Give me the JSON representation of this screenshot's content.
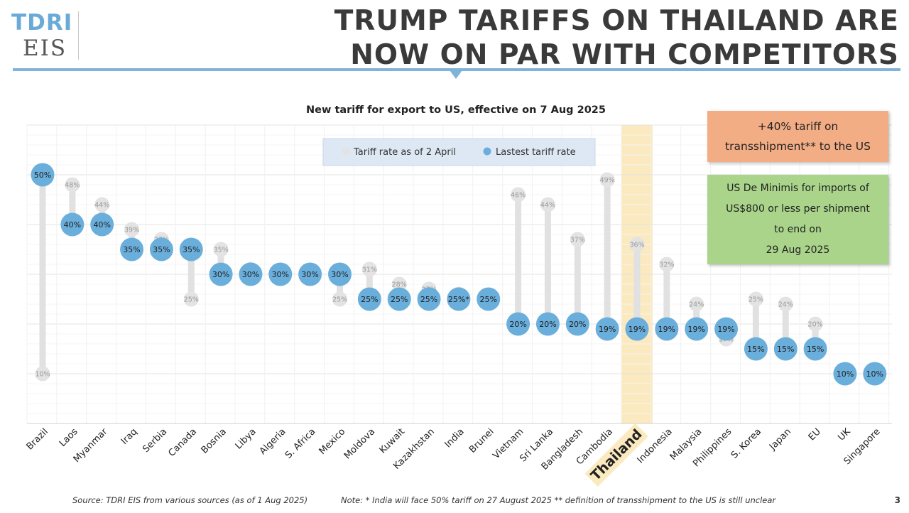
{
  "logo": {
    "line1": "TDRI",
    "line2": "EIS"
  },
  "headline": {
    "line1": "TRUMP TARIFFS ON THAILAND ARE",
    "line2": "NOW ON PAR WITH COMPETITORS"
  },
  "notes": {
    "transshipment_line1": "+40%  tariff on",
    "transshipment_line2": "transshipment** to the US",
    "deminimis_line1": "US De Minimis for imports of",
    "deminimis_line2": "US$800 or less per shipment",
    "deminimis_line3": "to end on",
    "deminimis_line4": "29 Aug 2025"
  },
  "footer": {
    "source": "Source: TDRI EIS from various sources (as of 1 Aug 2025)",
    "note": "Note: * India will face 50% tariff on 27 August 2025   ** definition of transshipment to the US is still unclear",
    "page": "3"
  },
  "colors": {
    "latest": "#6aaedb",
    "april": "#e3e3e3",
    "stem": "#e1e1e1",
    "highlight": "#fbe9bf",
    "trans_box": "#f3ad85",
    "minimis_box": "#a9d48a",
    "accent": "#7fb3d8"
  },
  "chart_data": {
    "type": "dumbbell",
    "title": "New tariff for export to US, effective on 7 Aug 2025",
    "legend": {
      "april": "Tariff rate as of 2 April",
      "latest": "Lastest tariff rate"
    },
    "highlight": "Thailand",
    "ylim": [
      0,
      60
    ],
    "categories": [
      "Brazil",
      "Laos",
      "Myanmar",
      "Iraq",
      "Serbia",
      "Canada",
      "Bosnia",
      "Libya",
      "Algeria",
      "S. Africa",
      "Mexico",
      "Moldova",
      "Kuwait",
      "Kazakhstan",
      "India",
      "Brunei",
      "Vietnam",
      "Sri Lanka",
      "Bangladesh",
      "Cambodia",
      "Thailand",
      "Indonesia",
      "Malaysia",
      "Philippines",
      "S. Korea",
      "Japan",
      "EU",
      "UK",
      "Singapore"
    ],
    "series": [
      {
        "name": "Tariff rate as of 2 April",
        "values": [
          10,
          48,
          44,
          39,
          37,
          25,
          35,
          31,
          30,
          30,
          25,
          31,
          28,
          27,
          26,
          24,
          46,
          44,
          37,
          49,
          36,
          32,
          24,
          17,
          25,
          24,
          20,
          10,
          10
        ]
      },
      {
        "name": "Lastest tariff rate",
        "values": [
          50,
          40,
          40,
          35,
          35,
          35,
          30,
          30,
          30,
          30,
          30,
          25,
          25,
          25,
          25,
          25,
          20,
          20,
          20,
          19,
          19,
          19,
          19,
          19,
          15,
          15,
          15,
          10,
          10
        ]
      }
    ],
    "april_labels": [
      "10%",
      "48%",
      "44%",
      "39%",
      "37%",
      "25%",
      "35%",
      "31%",
      "30%",
      "30%",
      "25%",
      "31%",
      "28%",
      "27%",
      "26%",
      "24%",
      "46%",
      "44%",
      "37%",
      "49%",
      "36%",
      "32%",
      "24%",
      "17%",
      "25%",
      "24%",
      "20%",
      "10%",
      "10%"
    ],
    "latest_labels": [
      "50%",
      "40%",
      "40%",
      "35%",
      "35%",
      "35%",
      "30%",
      "30%",
      "30%",
      "30%",
      "30%",
      "25%",
      "25%",
      "25%",
      "25%*",
      "25%",
      "20%",
      "20%",
      "20%",
      "19%",
      "19%",
      "19%",
      "19%",
      "19%",
      "15%",
      "15%",
      "15%",
      "10%",
      "10%"
    ],
    "show_april": [
      true,
      true,
      true,
      true,
      true,
      true,
      true,
      true,
      false,
      false,
      true,
      true,
      true,
      true,
      true,
      false,
      true,
      true,
      true,
      true,
      true,
      true,
      true,
      true,
      true,
      true,
      true,
      false,
      false
    ]
  }
}
